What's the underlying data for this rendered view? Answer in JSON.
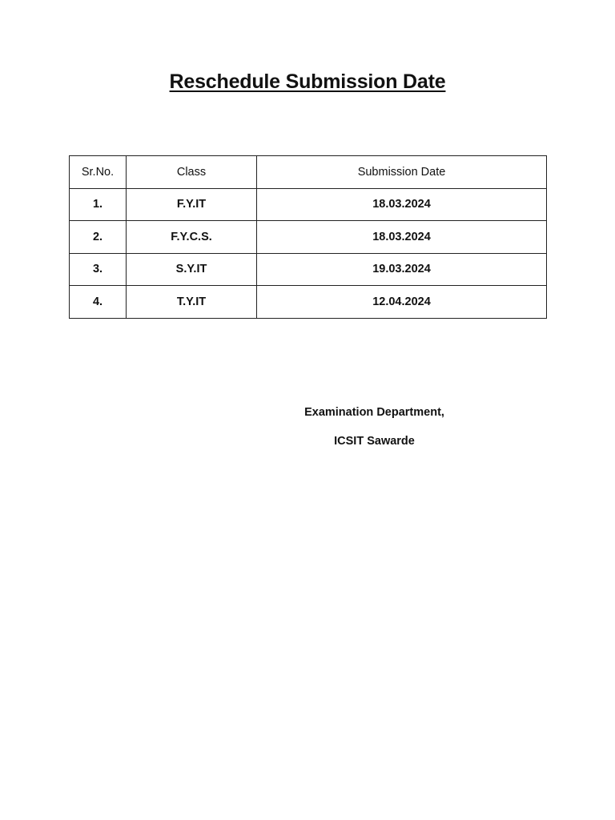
{
  "title": "Reschedule Submission Date",
  "table": {
    "headers": [
      "Sr.No.",
      "Class",
      "Submission Date"
    ],
    "rows": [
      [
        "1.",
        "F.Y.IT",
        "18.03.2024"
      ],
      [
        "2.",
        "F.Y.C.S.",
        "18.03.2024"
      ],
      [
        "3.",
        "S.Y.IT",
        "19.03.2024"
      ],
      [
        "4.",
        "T.Y.IT",
        "12.04.2024"
      ]
    ]
  },
  "footer": {
    "line1": "Examination Department,",
    "line2": "ICSIT Sawarde"
  }
}
